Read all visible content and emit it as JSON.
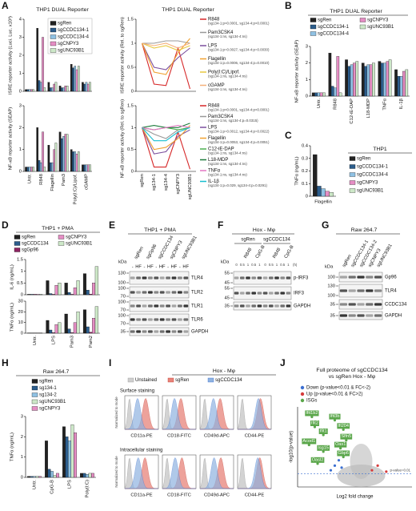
{
  "panel_labels": [
    "A",
    "B",
    "C",
    "D",
    "E",
    "F",
    "G",
    "H",
    "I",
    "J"
  ],
  "chart_data": [
    {
      "type": "bar",
      "title": "THP1 DUAL Reporter",
      "ylabel": "ISRE reporter activity (Luci. Luc. x10³)",
      "ylim": [
        0,
        4
      ],
      "yticks": [
        0,
        1,
        2,
        3,
        4
      ],
      "series": [
        {
          "name": "sgRen",
          "color": "#222222",
          "values": [
            0.1,
            3.5,
            0.5,
            0.3,
            1.5,
            0.5
          ]
        },
        {
          "name": "sgCCDC134-1",
          "color": "#2c5d8c",
          "values": [
            0.1,
            0.6,
            0.2,
            0.2,
            1.3,
            0.4
          ]
        },
        {
          "name": "sgCCDC134-4",
          "color": "#8fc1e3",
          "values": [
            0.1,
            0.5,
            0.2,
            0.2,
            1.4,
            0.5
          ]
        },
        {
          "name": "sgCNPY3",
          "color": "#e58ec4",
          "values": [
            0.1,
            3.0,
            0.4,
            0.3,
            1.2,
            0.4
          ]
        },
        {
          "name": "sgUNC93B1",
          "color": "#cde8c8",
          "values": [
            0.1,
            0.2,
            0.5,
            0.3,
            1.4,
            0.5
          ]
        }
      ]
    },
    {
      "type": "bar",
      "ylabel": "NF-κB reporter activity (SEAP)",
      "categories": [
        "Untr.",
        "R848",
        "Flagellin",
        "Pam3",
        "Poly(I:C)/Lipof.",
        "cGAMP"
      ],
      "ylim": [
        0,
        3
      ],
      "yticks": [
        0,
        1,
        2,
        3
      ],
      "series": [
        {
          "color": "#222222",
          "values": [
            0.2,
            2.0,
            1.2,
            1.8,
            1.0,
            0.3
          ]
        },
        {
          "color": "#2c5d8c",
          "values": [
            0.2,
            0.5,
            0.4,
            1.5,
            0.9,
            0.3
          ]
        },
        {
          "color": "#8fc1e3",
          "values": [
            0.2,
            0.4,
            0.4,
            1.6,
            0.9,
            0.3
          ]
        },
        {
          "color": "#e58ec4",
          "values": [
            0.2,
            1.8,
            1.0,
            1.7,
            0.8,
            0.3
          ]
        },
        {
          "color": "#cde8c8",
          "values": [
            0.2,
            0.2,
            1.3,
            1.7,
            0.9,
            0.3
          ]
        }
      ]
    },
    {
      "type": "line",
      "title": "THP1 DUAL Reporter",
      "ylabel": "ISRE reporter activity (Rel. to sgRen)",
      "ylim": [
        0,
        1.5
      ],
      "yticks": [
        0,
        0.5,
        1,
        1.5
      ],
      "series": [
        {
          "name": "R848",
          "stats": "(sg134-1:p<0.0001, sg134-4:p<0.0001)",
          "color": "#d62728",
          "values": [
            1,
            0.15,
            0.12,
            0.9,
            0.05
          ]
        },
        {
          "name": "Pam3CSK4",
          "stats": "(sg134-1:ns, sg134-4:ns)",
          "color": "#999999",
          "values": [
            1,
            1.0,
            1.05,
            1.05,
            1.0
          ]
        },
        {
          "name": "LPS",
          "stats": "(sg134-1:p=0.0027, sg134-4:p=0.0030)",
          "color": "#7b4f9e",
          "values": [
            1,
            0.5,
            0.45,
            0.7,
            0.9
          ]
        },
        {
          "name": "Flagellin",
          "stats": "(sg134-1:p=0.0006, sg134-4:p=0.0010)",
          "color": "#f0a030",
          "values": [
            1,
            0.4,
            0.35,
            0.8,
            1.1
          ]
        },
        {
          "name": "Poly(I:C)/Lipof.",
          "stats": "(sg134-1:ns, sg134-4:ns)",
          "color": "#e8c840",
          "values": [
            1,
            0.9,
            0.95,
            0.85,
            0.95
          ]
        },
        {
          "name": "cGAMP",
          "stats": "(sg134-1:ns, sg134-4:ns)",
          "color": "#f5b07a",
          "values": [
            1,
            0.95,
            1.0,
            0.9,
            1.0
          ]
        }
      ]
    },
    {
      "type": "line",
      "ylabel": "NF-κB reporter activity (Rel. to sgRen)",
      "categories": [
        "sgRen",
        "sg134-1",
        "sg134-4",
        "sgCNPY3",
        "sgUNC93B1"
      ],
      "ylim": [
        0,
        1.5
      ],
      "yticks": [
        0,
        0.5,
        1,
        1.5
      ],
      "series": [
        {
          "name": "R848",
          "stats": "(sg134-1:p<0.0001, sg134-4:p<0.0001)",
          "color": "#d62728",
          "values": [
            1,
            0.1,
            0.1,
            0.9,
            0.05
          ]
        },
        {
          "name": "Pam3CSK4",
          "stats": "(sg134-1:ns, sg134-4:p=0.0315)",
          "color": "#999999",
          "values": [
            1,
            0.85,
            0.75,
            0.95,
            1.0
          ]
        },
        {
          "name": "LPS",
          "stats": "(sg134-1:p=0.0012, sg134-4:p=0.0022)",
          "color": "#7b4f9e",
          "values": [
            1,
            0.4,
            0.45,
            0.8,
            0.95
          ]
        },
        {
          "name": "Flagellin",
          "stats": "(sg134-1:p=0.0053, sg134-4:p=0.0051)",
          "color": "#f0a030",
          "values": [
            1,
            0.5,
            0.55,
            0.75,
            1.05
          ]
        },
        {
          "name": "C12-iE-DAP",
          "stats": "(sg134-1:ns, sg134-4:ns)",
          "color": "#4caf50",
          "values": [
            1,
            0.95,
            1.0,
            0.95,
            1.0
          ]
        },
        {
          "name": "L18-MDP",
          "stats": "(sg134-1:ns, sg134-4:ns)",
          "color": "#1b7a3a",
          "values": [
            1,
            1.05,
            1.0,
            1.0,
            1.1
          ]
        },
        {
          "name": "TNFα",
          "stats": "(sg134-1:ns, sg134-4:ns)",
          "color": "#e377c2",
          "values": [
            1,
            0.95,
            1.0,
            1.05,
            1.0
          ]
        },
        {
          "name": "IL-1β",
          "stats": "(sg134-1:p=0.029, sg134-4:p=0.0291)",
          "color": "#17becf",
          "values": [
            1,
            0.7,
            0.7,
            0.9,
            1.0
          ]
        }
      ]
    },
    {
      "type": "bar",
      "title": "THP1 DUAL Reporter",
      "ylabel": "NF-κB reporter activity (SEAP)",
      "categories": [
        "Untr.",
        "R848",
        "C12-iE-DAP",
        "L18-MDP",
        "TNFα",
        "IL-1β"
      ],
      "ylim": [
        0,
        3
      ],
      "yticks": [
        0,
        1,
        2,
        3
      ],
      "series": [
        {
          "name": "sgRen",
          "color": "#222222",
          "values": [
            0.2,
            2.6,
            2.2,
            2.0,
            2.1,
            1.6
          ]
        },
        {
          "name": "sgCCDC134-1",
          "color": "#2c5d8c",
          "values": [
            0.2,
            0.6,
            1.8,
            1.8,
            2.0,
            1.2
          ]
        },
        {
          "name": "sgCCDC134-4",
          "color": "#8fc1e3",
          "values": [
            0.2,
            0.5,
            1.9,
            1.9,
            2.0,
            1.2
          ]
        },
        {
          "name": "sgCNPY3",
          "color": "#e58ec4",
          "values": [
            0.2,
            2.4,
            2.0,
            1.9,
            2.1,
            1.5
          ]
        },
        {
          "name": "sgUNC93B1",
          "color": "#cde8c8",
          "values": [
            0.2,
            0.2,
            2.1,
            2.0,
            2.2,
            1.6
          ]
        }
      ]
    },
    {
      "type": "bar",
      "legend_title": "THP1",
      "ylabel": "TNFα (ng/mL)",
      "categories": [
        "Flagellin"
      ],
      "ylim": [
        0,
        0.4
      ],
      "yticks": [
        0,
        0.1,
        0.2,
        0.3,
        0.4
      ],
      "series": [
        {
          "name": "sgRen",
          "color": "#222222",
          "values": [
            0.33
          ]
        },
        {
          "name": "sgCCDC134-1",
          "color": "#2c5d8c",
          "values": [
            0.08
          ]
        },
        {
          "name": "sgCCDC134-4",
          "color": "#8fc1e3",
          "values": [
            0.06
          ]
        },
        {
          "name": "sgCNPY3",
          "color": "#e58ec4",
          "values": [
            0.04
          ]
        },
        {
          "name": "sgUNC93B1",
          "color": "#cde8c8",
          "values": [
            0.03
          ]
        }
      ]
    },
    {
      "type": "bar",
      "title": "THP1 + PMA",
      "ylabel": "IL-6 (ng/mL)",
      "ylim": [
        0,
        1.5
      ],
      "yticks": [
        0,
        0.5,
        1,
        1.5
      ],
      "series": [
        {
          "name": "sgRen",
          "color": "#222222",
          "values": [
            0.02,
            0.6,
            0.5,
            0.9
          ]
        },
        {
          "name": "sgCCDC134",
          "color": "#2c5d8c",
          "values": [
            0.02,
            0.05,
            0.1,
            0.2
          ]
        },
        {
          "name": "sgGp96",
          "color": "#8e2462",
          "values": [
            0.02,
            0.02,
            0.02,
            0.03
          ]
        },
        {
          "name": "sgCNPY3",
          "color": "#e58ec4",
          "values": [
            0.02,
            0.4,
            0.3,
            0.5
          ]
        },
        {
          "name": "sgUNC93B1",
          "color": "#cde8c8",
          "values": [
            0.02,
            0.5,
            0.6,
            1.2
          ]
        }
      ]
    },
    {
      "type": "bar",
      "ylabel": "TNFα (ng/mL)",
      "categories": [
        "Untr.",
        "LPS",
        "Pam3",
        "Pam2"
      ],
      "ylim": [
        0,
        30
      ],
      "yticks": [
        0,
        10,
        20,
        30
      ],
      "series": [
        {
          "color": "#222222",
          "values": [
            0.2,
            12,
            18,
            22
          ]
        },
        {
          "color": "#2c5d8c",
          "values": [
            0.2,
            3,
            4,
            6
          ]
        },
        {
          "color": "#8e2462",
          "values": [
            0.2,
            0.5,
            0.5,
            1
          ]
        },
        {
          "color": "#e58ec4",
          "values": [
            0.2,
            8,
            10,
            14
          ]
        },
        {
          "color": "#cde8c8",
          "values": [
            0.2,
            10,
            20,
            25
          ]
        }
      ]
    },
    {
      "type": "bar",
      "title": "Raw 264.7",
      "ylabel": "TNFα (ng/mL)",
      "categories": [
        "Untr.",
        "CpG-B",
        "LPS",
        "Poly(I:C)"
      ],
      "ylim": [
        0,
        3
      ],
      "yticks": [
        0,
        1,
        2,
        3
      ],
      "series": [
        {
          "name": "sgRen",
          "color": "#222222",
          "values": [
            0.05,
            1.8,
            2.5,
            0.2
          ]
        },
        {
          "name": "sg134-1",
          "color": "#2c5d8c",
          "values": [
            0.05,
            0.4,
            2.0,
            0.2
          ]
        },
        {
          "name": "sg134-2",
          "color": "#8fc1e3",
          "values": [
            0.05,
            0.3,
            1.8,
            0.15
          ]
        },
        {
          "name": "sgUNC93B1",
          "color": "#cde8c8",
          "values": [
            0.05,
            0.1,
            2.6,
            0.2
          ]
        },
        {
          "name": "sgCNPY3",
          "color": "#e58ec4",
          "values": [
            0.05,
            0.2,
            2.2,
            0.2
          ]
        }
      ]
    },
    {
      "type": "scatter",
      "title": [
        "Full proteome of sgCCDC134",
        "vs sgRen Hox - Mφ"
      ],
      "xlabel": "Log2 fold change",
      "ylabel": "-log10(p-value)",
      "xlim": [
        -10,
        10
      ],
      "ylim": [
        0,
        12
      ],
      "threshold": 2,
      "threshold_label": "p-value=0.01",
      "series": [
        {
          "name": "Down (p-value<0.01 & FC<-2)",
          "color": "#3b6fd1",
          "x": [
            -3.5,
            -2.8,
            -4.2,
            -2.3
          ],
          "y": [
            3.2,
            4.0,
            2.5,
            2.9
          ]
        },
        {
          "name": "Up (p-value<0.01 & FC>2)",
          "color": "#d63b3b",
          "x": [
            3,
            4,
            5.5
          ],
          "y": [
            2.5,
            3.2,
            2.3
          ]
        },
        {
          "name": "ISGs",
          "color": "#5aa64a",
          "labels": [
            "Ifit1b2",
            "Ifit2",
            "Ifit3b",
            "Ifi204",
            "Ifit1",
            "Slfn5",
            "Acod1",
            "Oas1",
            "Isg15",
            "Gbp6",
            "Oasl2"
          ],
          "x": [
            -7.5,
            -7,
            -3.5,
            -2,
            -5.5,
            -1.5,
            -8,
            -2.5,
            -5.5,
            -2,
            -6.5
          ],
          "y": [
            10.5,
            9,
            10,
            8.6,
            7.8,
            7,
            6.3,
            5.8,
            5.3,
            4.5,
            3.5
          ]
        }
      ]
    }
  ],
  "blots": [
    {
      "title": "THP1 + PMA",
      "unit": "kDa",
      "lanes": [
        "sgRen",
        "sgGp96",
        "sgCCDC134",
        "sgCNPY3",
        "sgUNC93B1"
      ],
      "treatments": [
        "-",
        "HF"
      ],
      "rows": [
        {
          "name": "TLR4",
          "markers": [
            130,
            100
          ]
        },
        {
          "name": "TLR2",
          "markers": [
            100,
            70
          ]
        },
        {
          "name": "TLR1",
          "markers": [
            100,
            70
          ]
        },
        {
          "name": "TLR6",
          "markers": [
            100,
            70
          ]
        },
        {
          "name": "GAPDH",
          "markers": [
            35
          ]
        }
      ]
    },
    {
      "title": "Hox - Mφ",
      "unit": "kDa",
      "groups": [
        "sgRen",
        "sgCCDC134"
      ],
      "stimuli": [
        "R848",
        "CpG-B"
      ],
      "times": [
        0,
        0.5,
        1,
        0.5,
        1
      ],
      "time_unit": "(h)",
      "rows": [
        {
          "name": "p-IRF3",
          "markers": [
            55,
            45
          ]
        },
        {
          "name": "IRF3",
          "markers": [
            55,
            45
          ]
        },
        {
          "name": "GAPDH",
          "markers": [
            35
          ]
        }
      ]
    },
    {
      "title": "Raw 264.7",
      "unit": "kDa",
      "lanes": [
        "sgRen",
        "sgCCDC134-1",
        "sgCCDC134-2",
        "sgCNPY3",
        "sgUNC93B1"
      ],
      "rows": [
        {
          "name": "Gp96",
          "markers": [
            100
          ]
        },
        {
          "name": "TLR4",
          "markers": [
            130,
            100
          ]
        },
        {
          "name": "CCDC134",
          "markers": [
            35
          ]
        },
        {
          "name": "GAPDH",
          "markers": [
            35
          ]
        }
      ]
    }
  ],
  "flow": {
    "title": "Hox - Mφ",
    "legend": [
      "Unstained",
      "sgRen",
      "sgCCDC134"
    ],
    "ylabel": "Normalized to mode",
    "rows": [
      "Surface staining",
      "Intracellular staining"
    ],
    "columns": [
      "CD11a-PE",
      "CD18-FITC",
      "CD49d-APC",
      "CD44-PE"
    ]
  }
}
